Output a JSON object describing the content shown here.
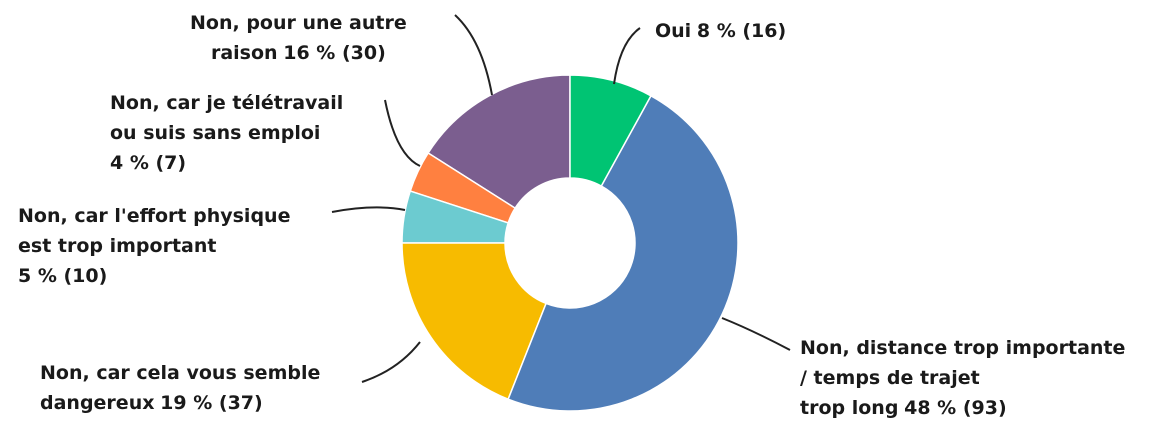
{
  "chart_data": {
    "type": "donut",
    "categories": [
      "Oui",
      "Non, distance trop importante\n/ temps de trajet\ntrop long",
      "Non, car cela vous semble\ndangereux",
      "Non, car l'effort physique\nest trop important",
      "Non, car je télétravail\nou suis sans emploi",
      "Non, pour une autre\nraison"
    ],
    "values": [
      8,
      48,
      19,
      5,
      4,
      16
    ],
    "value_labels": [
      "8 % (16)",
      "48 % (93)",
      "19 % (37)",
      "5 % (10)",
      "4 % (7)",
      "16 % (30)"
    ],
    "colors": [
      "#00c473",
      "#4f7db8",
      "#f7bb00",
      "#6ccbd0",
      "#ff8040",
      "#7b5e8f"
    ]
  }
}
